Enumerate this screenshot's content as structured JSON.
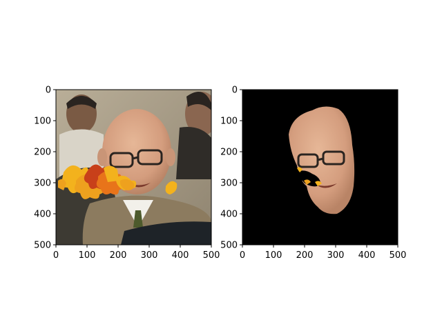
{
  "chart_data": [
    {
      "type": "image",
      "title": "",
      "xlabel": "",
      "ylabel": "",
      "xlim": [
        0,
        500
      ],
      "ylim": [
        500,
        0
      ],
      "xticks": [
        0,
        100,
        200,
        300,
        400,
        500
      ],
      "yticks": [
        0,
        100,
        200,
        300,
        400,
        500
      ],
      "xtick_labels": [
        "0",
        "100",
        "200",
        "300",
        "400",
        "500"
      ],
      "ytick_labels": [
        "0",
        "100",
        "200",
        "300",
        "400",
        "500"
      ],
      "grid": false,
      "content": "photo of an elderly man with glasses and tan suit; yellow and orange autumn leaves overlay across the mid-left region",
      "background_color": "#b7a98f"
    },
    {
      "type": "image",
      "title": "",
      "xlabel": "",
      "ylabel": "",
      "xlim": [
        0,
        500
      ],
      "ylim": [
        500,
        0
      ],
      "xticks": [
        0,
        100,
        200,
        300,
        400,
        500
      ],
      "yticks": [
        0,
        100,
        200,
        300,
        400,
        500
      ],
      "xtick_labels": [
        "0",
        "100",
        "200",
        "300",
        "400",
        "500"
      ],
      "ytick_labels": [
        "0",
        "100",
        "200",
        "300",
        "400",
        "500"
      ],
      "grid": false,
      "content": "masked face region only on black background, with cut-out holes where leaves occlude the face",
      "background_color": "#000000"
    }
  ],
  "colors": {
    "skin": "#d9a98a",
    "skin_shadow": "#b98a70",
    "leaf_yellow": "#f3b21d",
    "leaf_orange": "#e8741a",
    "leaf_red": "#c8401a",
    "suit": "#8c7b5f",
    "dark_suit": "#3d3a33"
  }
}
